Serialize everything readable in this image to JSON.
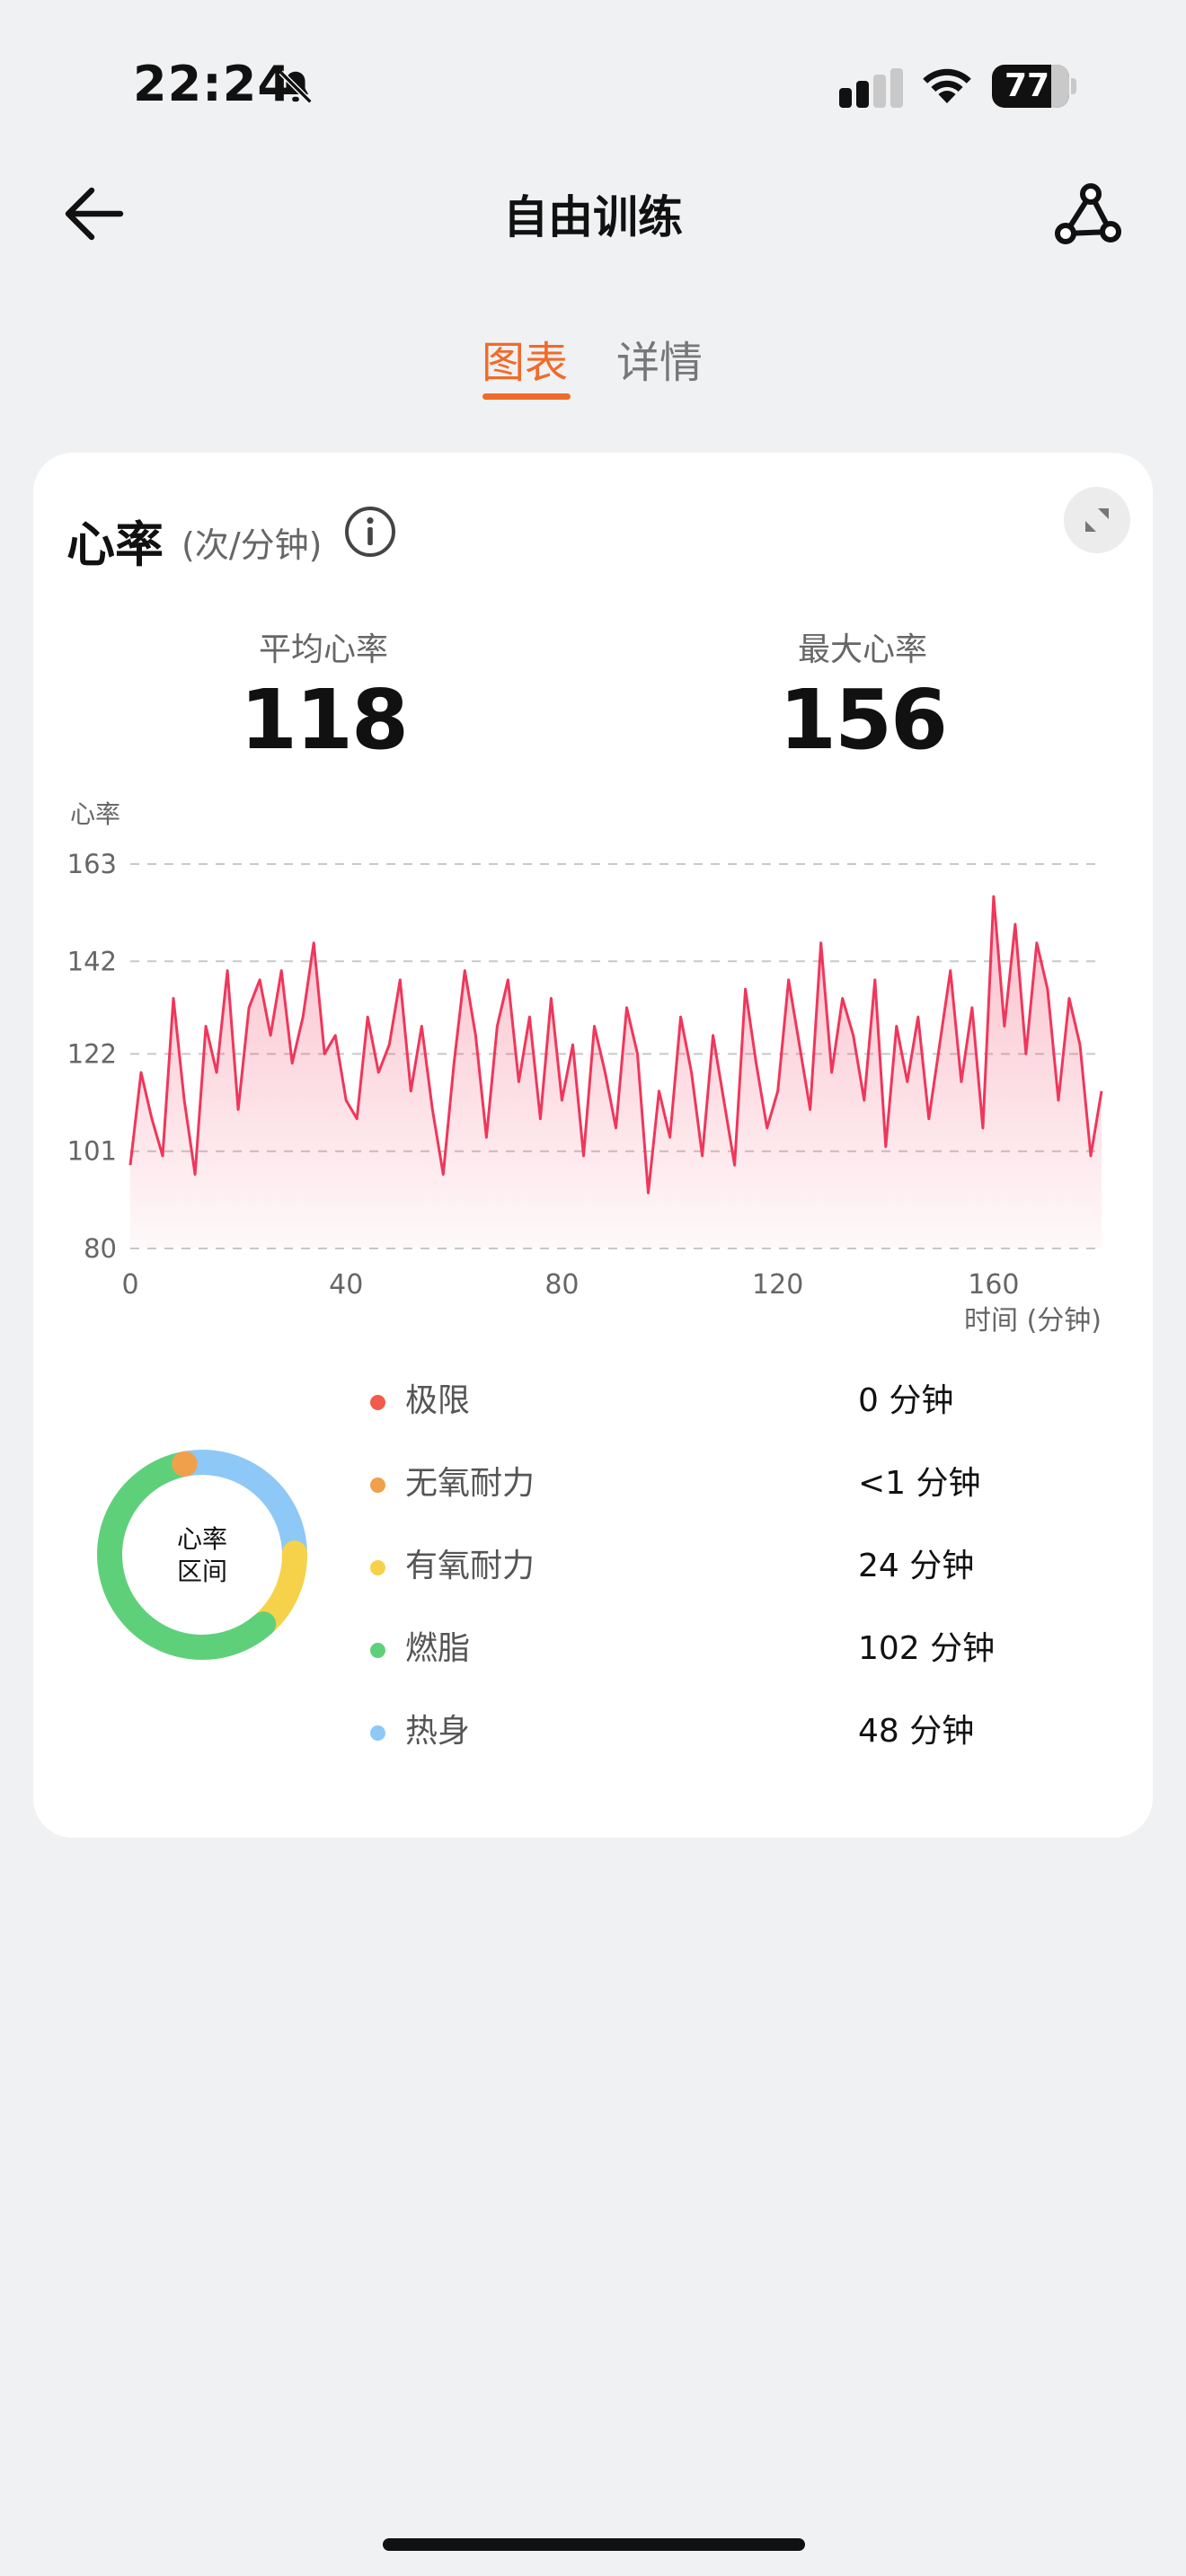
{
  "status_bar": {
    "time": "22:24",
    "battery": "77"
  },
  "header": {
    "title": "自由训练"
  },
  "tabs": [
    {
      "label": "图表",
      "active": true
    },
    {
      "label": "详情",
      "active": false
    }
  ],
  "heart_rate": {
    "title": "心率",
    "unit": "(次/分钟)",
    "avg_label": "平均心率",
    "avg_value": "118",
    "max_label": "最大心率",
    "max_value": "156"
  },
  "colors": {
    "accent": "#f06b2a",
    "line": "#f0365b",
    "zone_extreme": "#f25b4c",
    "zone_anaerobic": "#f0a04b",
    "zone_aerobic": "#f6d24a",
    "zone_fatburn": "#5fd07a",
    "zone_warmup": "#8ec8f6"
  },
  "chart_data": {
    "type": "area",
    "ylabel": "心率",
    "xlabel": "时间 (分钟)",
    "xlim": [
      0,
      180
    ],
    "ylim": [
      80,
      163
    ],
    "x_ticks": [
      "0",
      "40",
      "80",
      "120",
      "160"
    ],
    "y_ticks": [
      "163",
      "142",
      "122",
      "101",
      "80"
    ],
    "grid": "horizontal-dashed",
    "series": [
      {
        "x": [
          0,
          2,
          4,
          6,
          8,
          10,
          12,
          14,
          16,
          18,
          20,
          22,
          24,
          26,
          28,
          30,
          32,
          34,
          36,
          38,
          40,
          42,
          44,
          46,
          48,
          50,
          52,
          54,
          56,
          58,
          60,
          62,
          64,
          66,
          68,
          70,
          72,
          74,
          76,
          78,
          80,
          82,
          84,
          86,
          88,
          90,
          92,
          94,
          96,
          98,
          100,
          102,
          104,
          106,
          108,
          110,
          112,
          114,
          116,
          118,
          120,
          122,
          124,
          126,
          128,
          130,
          132,
          134,
          136,
          138,
          140,
          142,
          144,
          146,
          148,
          150,
          152,
          154,
          156,
          158,
          160,
          162,
          164,
          166,
          168,
          170,
          172,
          174,
          176,
          178,
          180
        ],
        "y": [
          98,
          118,
          108,
          100,
          134,
          112,
          96,
          128,
          118,
          140,
          110,
          132,
          138,
          126,
          140,
          120,
          130,
          146,
          122,
          126,
          112,
          108,
          130,
          118,
          124,
          138,
          114,
          128,
          110,
          96,
          120,
          140,
          126,
          104,
          128,
          138,
          116,
          130,
          108,
          134,
          112,
          124,
          100,
          128,
          118,
          106,
          132,
          122,
          92,
          114,
          104,
          130,
          118,
          100,
          126,
          112,
          98,
          136,
          120,
          106,
          114,
          138,
          124,
          110,
          146,
          118,
          134,
          126,
          112,
          138,
          102,
          128,
          116,
          130,
          108,
          124,
          140,
          116,
          132,
          106,
          156,
          128,
          150,
          122,
          146,
          136,
          112,
          134,
          124,
          100,
          114
        ]
      }
    ]
  },
  "zones": {
    "center_label_1": "心率",
    "center_label_2": "区间",
    "items": [
      {
        "name": "极限",
        "value": "0 分钟",
        "minutes": 0
      },
      {
        "name": "无氧耐力",
        "value": "<1 分钟",
        "minutes": 0.5
      },
      {
        "name": "有氧耐力",
        "value": "24 分钟",
        "minutes": 24
      },
      {
        "name": "燃脂",
        "value": "102 分钟",
        "minutes": 102
      },
      {
        "name": "热身",
        "value": "48 分钟",
        "minutes": 48
      }
    ]
  }
}
